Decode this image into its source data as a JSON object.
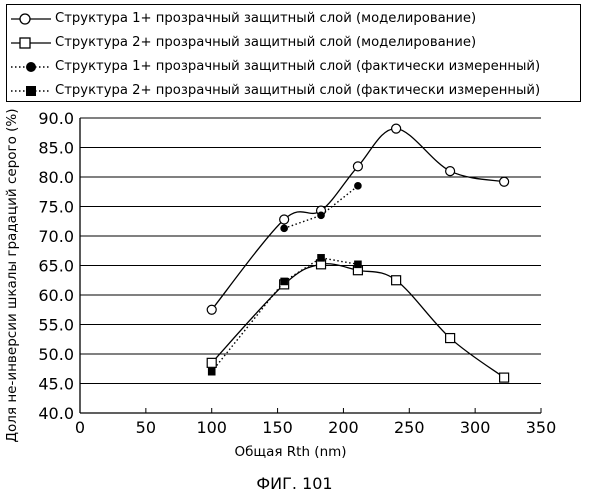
{
  "legend": {
    "items": [
      {
        "label": "Структура 1+ прозрачный защитный слой (моделирование)",
        "marker": "open-circle",
        "line": "solid"
      },
      {
        "label": "Структура 2+ прозрачный защитный слой (моделирование)",
        "marker": "open-square",
        "line": "solid"
      },
      {
        "label": "Структура 1+ прозрачный защитный слой (фактически измеренный)",
        "marker": "filled-circle",
        "line": "dotted"
      },
      {
        "label": "Структура 2+ прозрачный защитный слой (фактически измеренный)",
        "marker": "filled-square",
        "line": "dotted"
      }
    ]
  },
  "caption": "ФИГ. 101",
  "chart_data": {
    "type": "line",
    "title": "",
    "xlabel": "Общая Rth (nm)",
    "ylabel": "Доля не-инверсии шкалы градаций серого (%)",
    "xlim": [
      0,
      350
    ],
    "ylim": [
      40,
      90
    ],
    "xticks": [
      "0",
      "50",
      "100",
      "150",
      "200",
      "250",
      "300",
      "350"
    ],
    "yticks": [
      "40.0",
      "45.0",
      "50.0",
      "55.0",
      "60.0",
      "65.0",
      "70.0",
      "75.0",
      "80.0",
      "85.0",
      "90.0"
    ],
    "grid": "horizontal",
    "legend_position": "top",
    "series": [
      {
        "name": "Структура 1+ прозрачный защитный слой (моделирование)",
        "marker": "open-circle",
        "line": "solid",
        "smooth": true,
        "x": [
          100,
          155,
          183,
          211,
          240,
          281,
          322
        ],
        "y": [
          57.5,
          72.8,
          74.3,
          81.8,
          88.2,
          81.0,
          79.2
        ]
      },
      {
        "name": "Структура 2+ прозрачный защитный слой (моделирование)",
        "marker": "open-square",
        "line": "solid",
        "smooth": true,
        "x": [
          100,
          155,
          183,
          211,
          240,
          281,
          322
        ],
        "y": [
          48.5,
          61.8,
          65.2,
          64.2,
          62.5,
          52.7,
          46.0
        ]
      },
      {
        "name": "Структура 1+ прозрачный защитный слой (фактически измеренный)",
        "marker": "filled-circle",
        "line": "dotted",
        "smooth": false,
        "x": [
          155,
          183,
          211
        ],
        "y": [
          71.3,
          73.5,
          78.5
        ]
      },
      {
        "name": "Структура 2+ прозрачный защитный слой (фактически измеренный)",
        "marker": "filled-square",
        "line": "dotted",
        "smooth": false,
        "x": [
          100,
          155,
          183,
          211
        ],
        "y": [
          47.0,
          62.3,
          66.3,
          65.2
        ]
      }
    ]
  }
}
